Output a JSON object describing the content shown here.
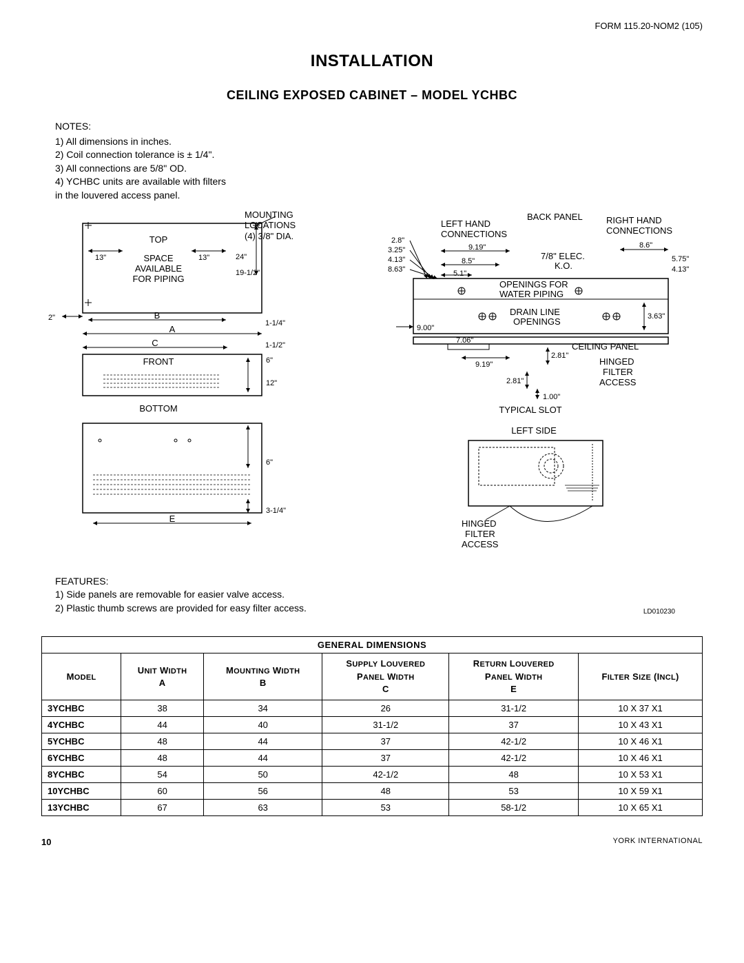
{
  "form_id": "FORM 115.20-NOM2 (105)",
  "title": "INSTALLATION",
  "subtitle": "CEILING EXPOSED CABINET – MODEL YCHBC",
  "notes_title": "NOTES:",
  "notes": [
    "1)  All dimensions in inches.",
    "2)  Coil connection tolerance is ± 1/4\".",
    "3)  All connections are 5/8\" OD.",
    "4)  YCHBC units are available with filters",
    "     in the louvered access panel."
  ],
  "diagram_labels": {
    "top": "TOP",
    "space_available": "SPACE\nAVAILABLE\nFOR PIPING",
    "mounting": "MOUNTING\nLOCATIONS\n(4) 3/8\" DIA.",
    "front": "FRONT",
    "bottom": "BOTTOM",
    "back_panel": "BACK PANEL",
    "left_hand": "LEFT HAND\nCONNECTIONS",
    "right_hand": "RIGHT HAND\nCONNECTIONS",
    "elec_ko": "7/8\" ELEC.\nK.O.",
    "openings_water": "OPENINGS FOR\nWATER PIPING",
    "drain_line": "DRAIN LINE\nOPENINGS",
    "ceiling_panel": "CEILING PANEL",
    "hinged_filter": "HINGED\nFILTER\nACCESS",
    "typical_slot": "TYPICAL SLOT",
    "left_side": "LEFT SIDE",
    "hinged_filter2": "HINGED\nFILTER\nACCESS",
    "dim_A": "A",
    "dim_B": "B",
    "dim_C": "C",
    "dim_E": "E",
    "d2": "2\"",
    "d13a": "13\"",
    "d13b": "13\"",
    "d24": "24\"",
    "d19_12": "19-1/2\"",
    "d1_14": "1-1/4\"",
    "d1_12": "1-1/2\"",
    "d6a": "6\"",
    "d12": "12\"",
    "d6b": "6\"",
    "d3_14": "3-1/4\"",
    "r28": "2.8\"",
    "r325": "3.25\"",
    "r413": "4.13\"",
    "r863": "8.63\"",
    "r919a": "9.19\"",
    "r85": "8.5\"",
    "r51": "5.1\"",
    "r86": "8.6\"",
    "r575": "5.75\"",
    "r413b": "4.13\"",
    "r363": "3.63\"",
    "r900": "9.00\"",
    "r706": "7.06\"",
    "r919b": "9.19\"",
    "r281a": "2.81\"",
    "r281b": "2.81\"",
    "r100": "1.00\""
  },
  "features_title": "FEATURES:",
  "features": [
    "1)  Side panels are removable for easier valve access.",
    "2)  Plastic thumb screws are provided for easy filter access."
  ],
  "ref_id": "LD010230",
  "table": {
    "title": "GENERAL DIMENSIONS",
    "headers": [
      "MODEL",
      "UNIT WIDTH A",
      "MOUNTING WIDTH B",
      "SUPPLY LOUVERED PANEL WIDTH C",
      "RETURN LOUVERED PANEL WIDTH E",
      "FILTER SIZE (INCL)"
    ],
    "header_lines": [
      [
        "MODEL",
        ""
      ],
      [
        "UNIT WIDTH",
        "A"
      ],
      [
        "MOUNTING WIDTH",
        "B"
      ],
      [
        "SUPPLY LOUVERED",
        "PANEL WIDTH",
        "C"
      ],
      [
        "RETURN LOUVERED",
        "PANEL WIDTH",
        "E"
      ],
      [
        "FILTER SIZE (INCL)",
        ""
      ]
    ],
    "rows": [
      [
        "3YCHBC",
        "38",
        "34",
        "26",
        "31-1/2",
        "10 X 37 X1"
      ],
      [
        "4YCHBC",
        "44",
        "40",
        "31-1/2",
        "37",
        "10 X 43 X1"
      ],
      [
        "5YCHBC",
        "48",
        "44",
        "37",
        "42-1/2",
        "10 X 46 X1"
      ],
      [
        "6YCHBC",
        "48",
        "44",
        "37",
        "42-1/2",
        "10 X 46 X1"
      ],
      [
        "8YCHBC",
        "54",
        "50",
        "42-1/2",
        "48",
        "10 X 53 X1"
      ],
      [
        "10YCHBC",
        "60",
        "56",
        "48",
        "53",
        "10 X 59 X1"
      ],
      [
        "13YCHBC",
        "67",
        "63",
        "53",
        "58-1/2",
        "10 X 65 X1"
      ]
    ]
  },
  "page_number": "10",
  "footer_right": "YORK INTERNATIONAL",
  "colors": {
    "line": "#000000",
    "bg": "#ffffff"
  }
}
